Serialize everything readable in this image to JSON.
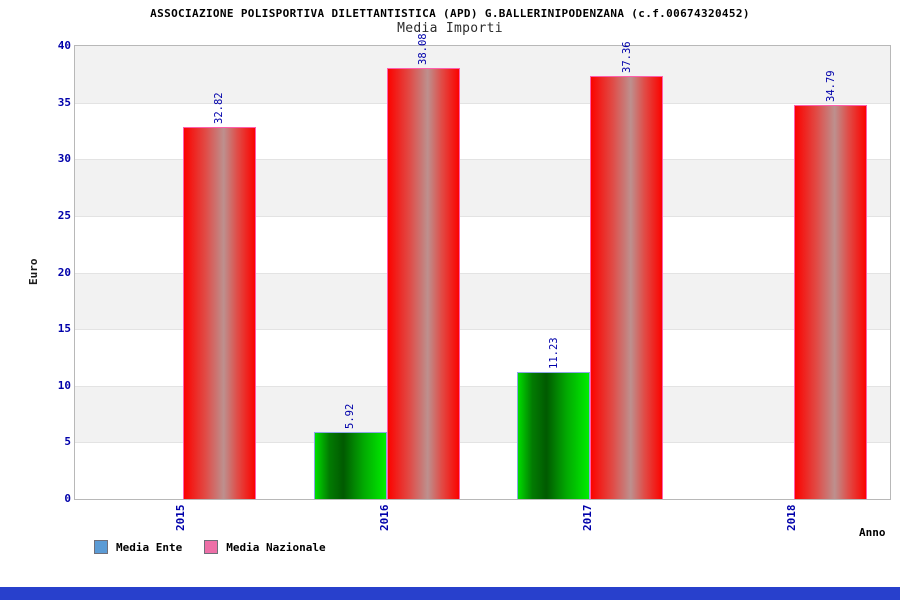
{
  "title": "ASSOCIAZIONE POLISPORTIVA DILETTANTISTICA (APD) G.BALLERINIPODENZANA (c.f.00674320452)",
  "subtitle": "Media Importi",
  "chart_data": {
    "type": "bar",
    "categories": [
      "2015",
      "2016",
      "2017",
      "2018"
    ],
    "series": [
      {
        "name": "Media Ente",
        "color_key": "green",
        "values": [
          null,
          5.92,
          11.23,
          null
        ]
      },
      {
        "name": "Media Nazionale",
        "color_key": "red",
        "values": [
          32.82,
          38.08,
          37.36,
          34.79
        ]
      }
    ],
    "value_labels": {
      "media_ente": [
        "",
        "5.92",
        "11.23",
        ""
      ],
      "media_nazionale": [
        "32.82",
        "38.08",
        "37.36",
        "34.79"
      ]
    },
    "xlabel": "Anno",
    "ylabel": "Euro",
    "ylim": [
      0,
      40
    ],
    "ytick_step": 5,
    "yticks": [
      0,
      5,
      10,
      15,
      20,
      25,
      30,
      35,
      40
    ],
    "grid": "horizontal-bands-alternating",
    "legend_position": "bottom-left",
    "value_label_rotation_deg": 90,
    "xtick_rotation_deg": 90
  },
  "colors": {
    "axis_text_blue": "#0000aa",
    "band_gray": "#f2f2f2",
    "band_white": "#ffffff",
    "gridline": "#e3e3e3",
    "plot_border": "#b8b8b8",
    "bar_red_edge": "#fb0300",
    "bar_red_mid": "#e14a45",
    "bar_red_light_center": "#bd908e",
    "bar_red_border": "#ff5fae",
    "bar_green_edge": "#00dd00",
    "bar_green_dark_center": "#015a01",
    "bar_green_border": "#8ea6e8",
    "legend_blue_swatch": "#5b9bd5",
    "legend_pink_swatch": "#ed6fa7",
    "bottom_bar_blue": "#2840cc",
    "title_text": "#000000"
  }
}
